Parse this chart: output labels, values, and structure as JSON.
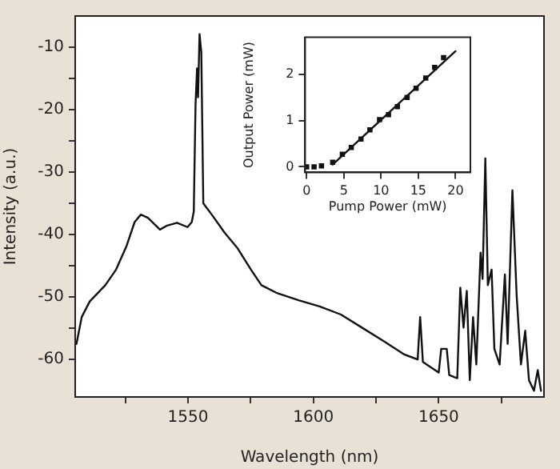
{
  "chart_data": [
    {
      "type": "line",
      "xlabel": "Wavelength (nm)",
      "ylabel": "Intensity (a.u.)",
      "xlim": [
        1505,
        1692
      ],
      "ylim": [
        -66,
        -5
      ],
      "xticks": [
        {
          "value": 1525,
          "label": null
        },
        1550,
        {
          "value": 1575,
          "label": null
        },
        1600,
        {
          "value": 1625,
          "label": null
        },
        1650,
        {
          "value": 1675,
          "label": null
        }
      ],
      "yticks": [
        -60,
        {
          "value": -55,
          "label": null
        },
        -50,
        {
          "value": -45,
          "label": null
        },
        -40,
        {
          "value": -35,
          "label": null
        },
        -30,
        {
          "value": -25,
          "label": null
        },
        -20,
        {
          "value": -15,
          "label": null
        },
        -10
      ],
      "grid": false,
      "legend": false,
      "marker": "none",
      "line_style": "solid",
      "series": [
        {
          "color": "#111111",
          "x": [
            1505.5,
            1507.6,
            1510.8,
            1517,
            1521.3,
            1525.5,
            1528.7,
            1531.2,
            1534,
            1538.8,
            1541.4,
            1545.6,
            1549.8,
            1551.5,
            1552.3,
            1553,
            1553.6,
            1554,
            1554.6,
            1555.3,
            1556.1,
            1559.3,
            1564.6,
            1569.8,
            1575.1,
            1579.3,
            1585.7,
            1594.1,
            1602.5,
            1611,
            1619.4,
            1627.8,
            1636.3,
            1641.6,
            1642.6,
            1643.7,
            1650,
            1651,
            1653.2,
            1654.2,
            1657.4,
            1658.6,
            1659.9,
            1661.2,
            1662.4,
            1663.7,
            1665,
            1666.7,
            1667.5,
            1668.6,
            1669.6,
            1671.1,
            1672.2,
            1674.3,
            1676.4,
            1677.5,
            1679.4,
            1681.1,
            1682.8,
            1684.5,
            1686,
            1688,
            1689.5,
            1690.8
          ],
          "values": [
            -57.5,
            -53.2,
            -50.7,
            -48.1,
            -45.6,
            -41.8,
            -38,
            -36.8,
            -37.3,
            -39.2,
            -38.6,
            -38.1,
            -38.8,
            -38,
            -36.3,
            -19.3,
            -13.4,
            -18,
            -7.9,
            -10.8,
            -35,
            -36.7,
            -39.7,
            -42.2,
            -45.6,
            -48.1,
            -49.4,
            -50.5,
            -51.5,
            -52.8,
            -54.9,
            -57,
            -59.2,
            -60,
            -53.2,
            -60.4,
            -62.1,
            -58.3,
            -58.3,
            -62.5,
            -63,
            -48.5,
            -54.9,
            -49,
            -63.3,
            -53.2,
            -60.8,
            -42.9,
            -47.1,
            -27.8,
            -48.1,
            -45.6,
            -58.3,
            -60.8,
            -46.4,
            -57.5,
            -32.9,
            -49.8,
            -60.8,
            -55.4,
            -63.3,
            -65,
            -61.7,
            -65
          ]
        }
      ]
    },
    {
      "type": "scatter",
      "xlabel": "Pump Power (mW)",
      "ylabel": "Output Power (mW)",
      "xlim": [
        -0.2,
        22
      ],
      "ylim": [
        -0.12,
        2.8
      ],
      "xticks": [
        0,
        5,
        10,
        15,
        20
      ],
      "yticks": [
        0,
        1,
        2
      ],
      "grid": false,
      "legend": false,
      "marker": "square",
      "series": [
        {
          "color": "#111111",
          "x": [
            0,
            1,
            2,
            3.5,
            4.8,
            6,
            7.3,
            8.5,
            9.8,
            11,
            12.2,
            13.5,
            14.7,
            16,
            17.2,
            18.4
          ],
          "values": [
            0,
            0,
            0.02,
            0.1,
            0.27,
            0.42,
            0.6,
            0.8,
            1.02,
            1.13,
            1.3,
            1.5,
            1.7,
            1.92,
            2.15,
            2.36
          ]
        },
        {
          "type": "line",
          "color": "#111111",
          "line_style": "solid",
          "marker": "none",
          "x": [
            3.5,
            20
          ],
          "values": [
            0.05,
            2.5
          ]
        }
      ]
    }
  ]
}
